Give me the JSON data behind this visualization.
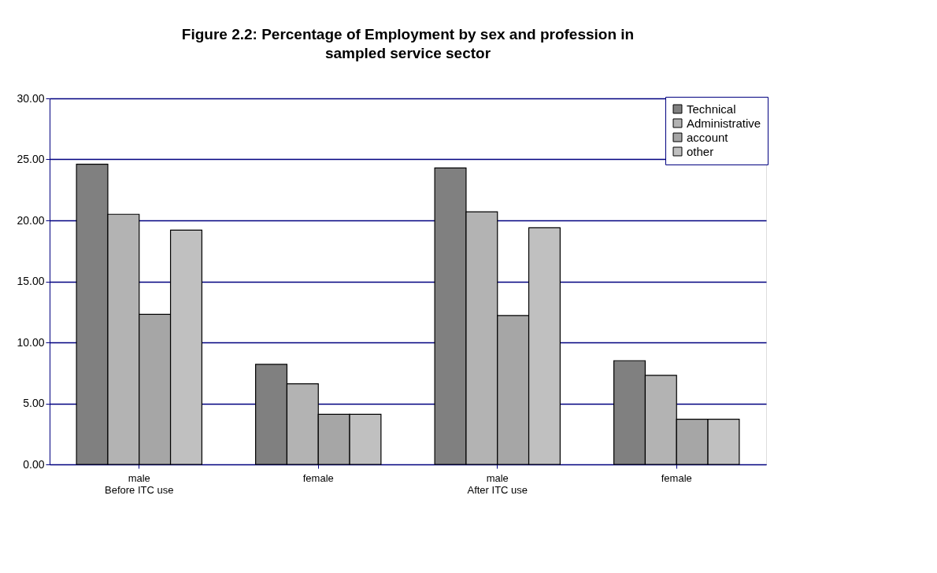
{
  "chart_data": {
    "type": "bar",
    "title": "Figure 2.2: Percentage of Employment by sex and profession in sampled service sector",
    "categories": [
      "male\nBefore ITC use",
      "female",
      "male\nAfter ITC use",
      "female"
    ],
    "series": [
      {
        "name": "Technical",
        "color": "#808080",
        "values": [
          24.6,
          8.2,
          24.3,
          8.5
        ]
      },
      {
        "name": "Administrative",
        "color": "#b3b3b3",
        "values": [
          20.5,
          6.6,
          20.7,
          7.3
        ]
      },
      {
        "name": "account",
        "color": "#a6a6a6",
        "values": [
          12.3,
          4.1,
          12.2,
          3.7
        ]
      },
      {
        "name": "other",
        "color": "#c0c0c0",
        "values": [
          19.2,
          4.1,
          19.4,
          3.7
        ]
      }
    ],
    "ylim": [
      0,
      30
    ],
    "yticks": [
      {
        "value": 0,
        "label": "0.00"
      },
      {
        "value": 5,
        "label": "5.00"
      },
      {
        "value": 10,
        "label": "10.00"
      },
      {
        "value": 15,
        "label": "15.00"
      },
      {
        "value": 20,
        "label": "20.00"
      },
      {
        "value": 25,
        "label": "25.00"
      },
      {
        "value": 30,
        "label": "30.00"
      }
    ],
    "grid": "y",
    "legend": "top right"
  }
}
